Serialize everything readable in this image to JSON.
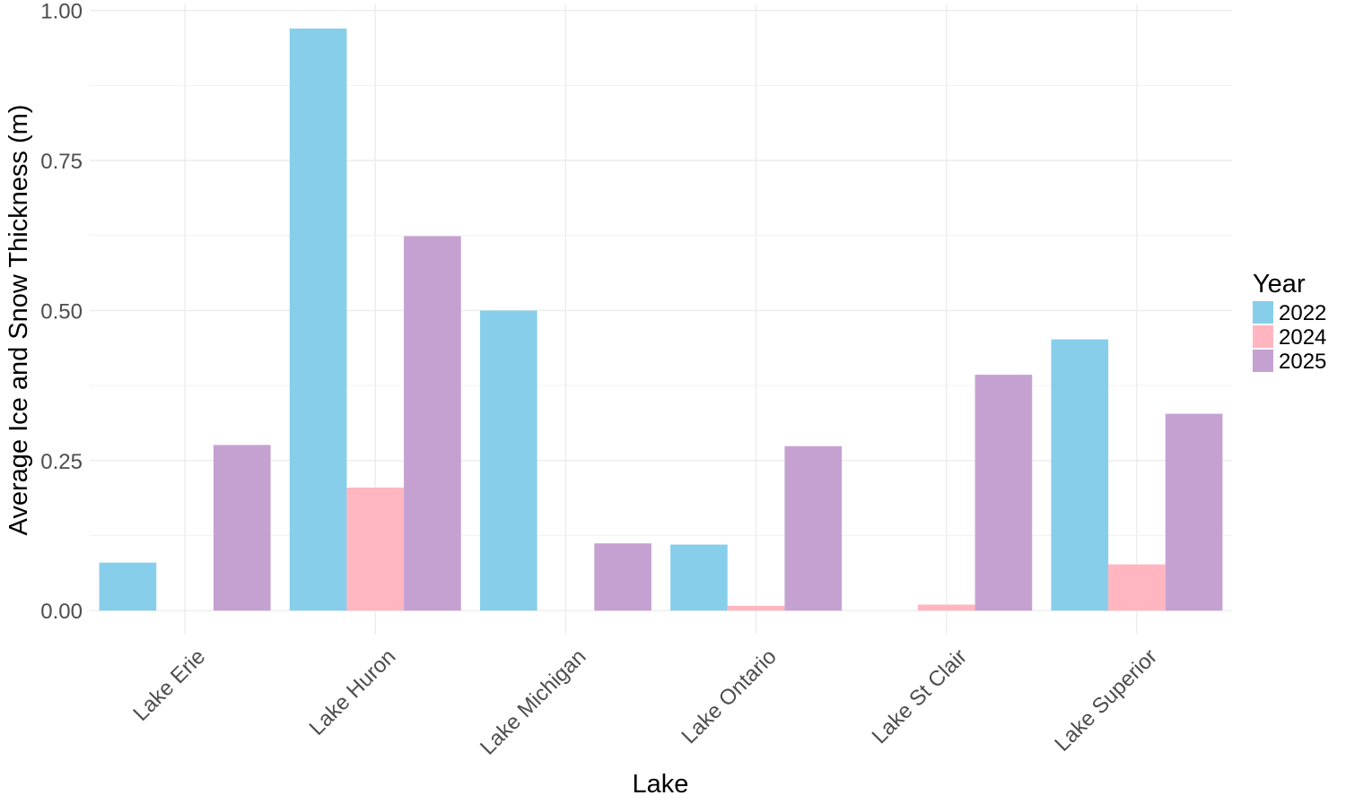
{
  "chart_data": {
    "type": "bar",
    "title": "",
    "xlabel": "Lake",
    "ylabel": "Average Ice and Snow Thickness (m)",
    "ylim": [
      -0.04,
      1.01
    ],
    "yticks": [
      0.0,
      0.25,
      0.5,
      0.75,
      1.0
    ],
    "ytick_labels": [
      "0.00",
      "0.25",
      "0.50",
      "0.75",
      "1.00"
    ],
    "grid": true,
    "legend": {
      "title": "Year",
      "position": "right"
    },
    "categories": [
      "Lake Erie",
      "Lake Huron",
      "Lake Michigan",
      "Lake Ontario",
      "Lake St Clair",
      "Lake Superior"
    ],
    "series": [
      {
        "name": "2022",
        "color": "#87CEEB",
        "values": [
          0.08,
          0.97,
          0.5,
          0.11,
          null,
          0.452
        ]
      },
      {
        "name": "2024",
        "color": "#FFB6C1",
        "values": [
          null,
          0.205,
          null,
          0.008,
          0.01,
          0.077
        ]
      },
      {
        "name": "2025",
        "color": "#C5A1D2",
        "values": [
          0.276,
          0.624,
          0.112,
          0.274,
          0.393,
          0.328
        ]
      }
    ]
  }
}
